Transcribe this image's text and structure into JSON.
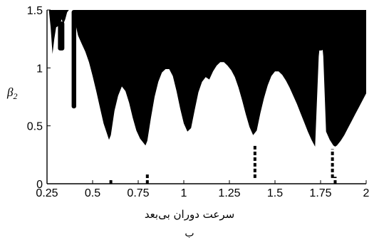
{
  "chart_data": {
    "type": "area",
    "xlabel": "سرعت دوران بی‌بعد",
    "ylabel": {
      "symbol": "β",
      "subscript": "2"
    },
    "caption": "ب",
    "xlim": [
      0.25,
      2.0
    ],
    "ylim": [
      0,
      1.5
    ],
    "x_tick_labels": [
      "0.25",
      "0.5",
      "0.75",
      "1",
      "1.25",
      "1.5",
      "1.75",
      "2"
    ],
    "x_tick_values": [
      0.25,
      0.5,
      0.75,
      1.0,
      1.25,
      1.5,
      1.75,
      2.0
    ],
    "y_tick_labels": [
      "0",
      "0.5",
      "1",
      "1.5"
    ],
    "y_tick_values": [
      0,
      0.5,
      1.0,
      1.5
    ],
    "grid": false,
    "fill_color": "#000000",
    "series": [
      {
        "role": "region",
        "boundary": [
          [
            0.25,
            1.5
          ],
          [
            0.26,
            1.5
          ],
          [
            0.27,
            1.35
          ],
          [
            0.28,
            1.12
          ],
          [
            0.29,
            1.25
          ],
          [
            0.3,
            1.35
          ],
          [
            0.31,
            1.36
          ],
          [
            0.32,
            1.37
          ],
          [
            0.33,
            1.42
          ],
          [
            0.34,
            1.38
          ],
          [
            0.35,
            1.42
          ],
          [
            0.36,
            1.48
          ],
          [
            0.37,
            1.5
          ],
          [
            0.4,
            1.5
          ],
          [
            0.41,
            1.35
          ],
          [
            0.42,
            1.28
          ],
          [
            0.44,
            1.21
          ],
          [
            0.46,
            1.14
          ],
          [
            0.48,
            1.05
          ],
          [
            0.5,
            0.93
          ],
          [
            0.52,
            0.8
          ],
          [
            0.54,
            0.66
          ],
          [
            0.56,
            0.52
          ],
          [
            0.575,
            0.45
          ],
          [
            0.59,
            0.38
          ],
          [
            0.6,
            0.42
          ],
          [
            0.62,
            0.63
          ],
          [
            0.64,
            0.76
          ],
          [
            0.66,
            0.84
          ],
          [
            0.68,
            0.8
          ],
          [
            0.7,
            0.7
          ],
          [
            0.72,
            0.57
          ],
          [
            0.74,
            0.46
          ],
          [
            0.76,
            0.39
          ],
          [
            0.775,
            0.36
          ],
          [
            0.79,
            0.33
          ],
          [
            0.8,
            0.37
          ],
          [
            0.82,
            0.57
          ],
          [
            0.84,
            0.75
          ],
          [
            0.86,
            0.88
          ],
          [
            0.88,
            0.96
          ],
          [
            0.9,
            0.99
          ],
          [
            0.92,
            0.99
          ],
          [
            0.94,
            0.93
          ],
          [
            0.96,
            0.8
          ],
          [
            0.98,
            0.65
          ],
          [
            1.0,
            0.52
          ],
          [
            1.02,
            0.45
          ],
          [
            1.04,
            0.48
          ],
          [
            1.06,
            0.64
          ],
          [
            1.08,
            0.79
          ],
          [
            1.1,
            0.88
          ],
          [
            1.12,
            0.92
          ],
          [
            1.14,
            0.9
          ],
          [
            1.16,
            0.97
          ],
          [
            1.18,
            1.02
          ],
          [
            1.2,
            1.05
          ],
          [
            1.22,
            1.05
          ],
          [
            1.24,
            1.02
          ],
          [
            1.26,
            0.98
          ],
          [
            1.28,
            0.92
          ],
          [
            1.3,
            0.83
          ],
          [
            1.32,
            0.72
          ],
          [
            1.34,
            0.6
          ],
          [
            1.36,
            0.49
          ],
          [
            1.38,
            0.42
          ],
          [
            1.4,
            0.46
          ],
          [
            1.42,
            0.61
          ],
          [
            1.44,
            0.74
          ],
          [
            1.46,
            0.85
          ],
          [
            1.48,
            0.93
          ],
          [
            1.5,
            0.97
          ],
          [
            1.52,
            0.97
          ],
          [
            1.54,
            0.94
          ],
          [
            1.56,
            0.89
          ],
          [
            1.58,
            0.83
          ],
          [
            1.6,
            0.76
          ],
          [
            1.62,
            0.69
          ],
          [
            1.64,
            0.61
          ],
          [
            1.66,
            0.53
          ],
          [
            1.68,
            0.45
          ],
          [
            1.7,
            0.38
          ],
          [
            1.72,
            0.32
          ],
          [
            1.74,
            1.1
          ],
          [
            1.745,
            1.18
          ],
          [
            1.75,
            1.2
          ],
          [
            1.755,
            1.2
          ],
          [
            1.76,
            1.18
          ],
          [
            1.765,
            1.1
          ],
          [
            1.78,
            0.45
          ],
          [
            1.8,
            0.38
          ],
          [
            1.82,
            0.33
          ],
          [
            1.83,
            0.32
          ],
          [
            1.84,
            0.33
          ],
          [
            1.86,
            0.37
          ],
          [
            1.88,
            0.42
          ],
          [
            1.9,
            0.48
          ],
          [
            1.92,
            0.54
          ],
          [
            1.94,
            0.6
          ],
          [
            1.96,
            0.66
          ],
          [
            1.98,
            0.72
          ],
          [
            2.0,
            0.78
          ]
        ],
        "islands": [
          {
            "x": [
              0.31,
              0.345
            ],
            "y": [
              1.15,
              1.4
            ]
          },
          {
            "x": [
              0.385,
              0.41
            ],
            "y": [
              0.65,
              1.5
            ]
          },
          {
            "x": [
              1.73,
              1.765
            ],
            "y": [
              1.15,
              1.32
            ]
          }
        ],
        "segments": [
          {
            "x": 0.6,
            "y": [
              0,
              0.04
            ]
          },
          {
            "x": 0.8,
            "y": [
              0,
              0.08
            ]
          },
          {
            "x": 1.39,
            "y": [
              0.05,
              0.33
            ]
          },
          {
            "x": 1.815,
            "y": [
              0.05,
              0.3
            ]
          },
          {
            "x": 1.83,
            "y": [
              0,
              0.06
            ]
          }
        ]
      }
    ]
  }
}
